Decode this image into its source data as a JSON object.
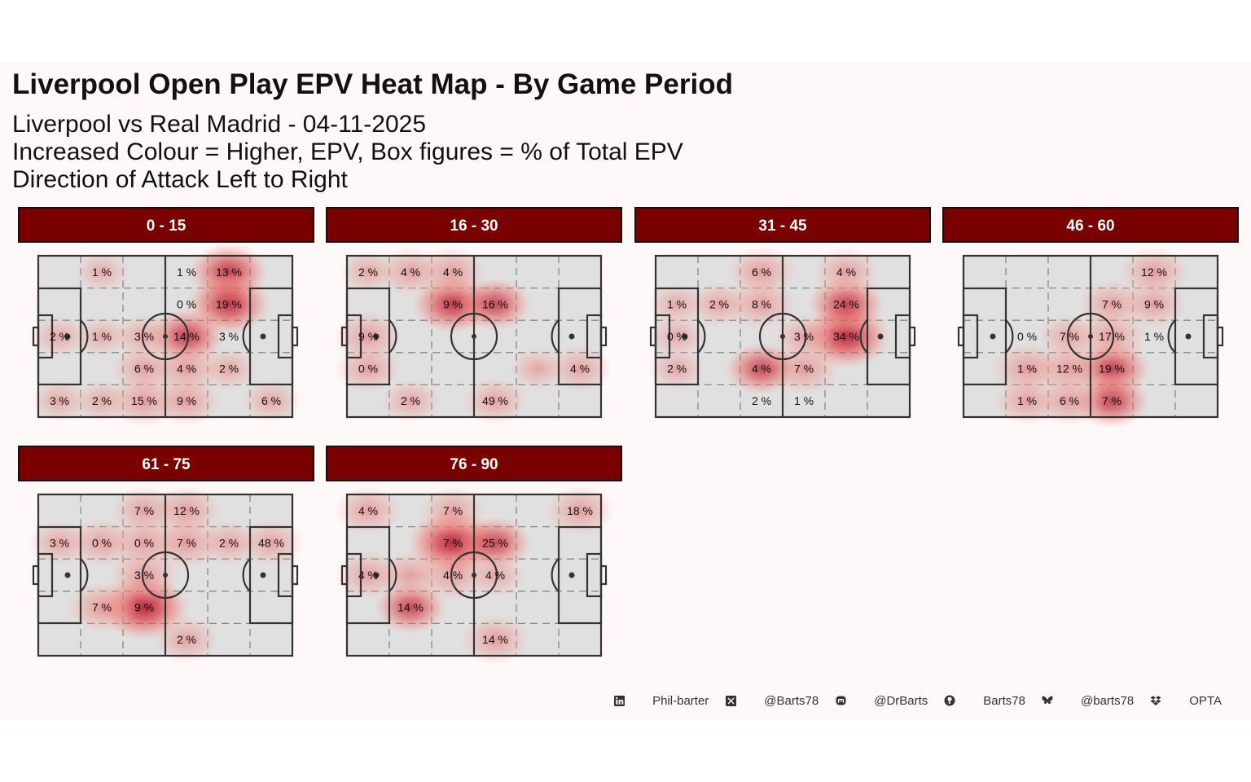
{
  "header": {
    "title": "Liverpool Open Play EPV Heat Map - By Game Period",
    "subtitle_lines": [
      "Liverpool vs Real Madrid - 04-11-2025",
      "Increased Colour = Higher, EPV, Box figures = % of Total EPV",
      "Direction of Attack Left to Right"
    ]
  },
  "colors": {
    "panel_background": "#fff8f8",
    "pitch_fill": "#e0e0e0",
    "pitch_lines": "#333333",
    "grid_dash": "#7f8a86",
    "strip_fill": "#7a0000",
    "heat_low": "#f7b3aa",
    "heat_high": "#b0102a"
  },
  "chart_data": {
    "type": "heatmap",
    "grid_rows": 5,
    "grid_cols": 6,
    "note_cells": "Each label is placed at [row, col] of the 5x6 box grid; row 0 = top, col 0 = left (own goal).",
    "panels": [
      {
        "period": "0 - 15",
        "labels": [
          {
            "cell": [
              0,
              1
            ],
            "text": "1 %"
          },
          {
            "cell": [
              0,
              3
            ],
            "text": "1 %"
          },
          {
            "cell": [
              0,
              4
            ],
            "text": "13 %"
          },
          {
            "cell": [
              1,
              3
            ],
            "text": "0 %"
          },
          {
            "cell": [
              1,
              4
            ],
            "text": "19 %"
          },
          {
            "cell": [
              2,
              0
            ],
            "text": "2 %"
          },
          {
            "cell": [
              2,
              1
            ],
            "text": "1 %"
          },
          {
            "cell": [
              2,
              2
            ],
            "text": "3 %"
          },
          {
            "cell": [
              2,
              3
            ],
            "text": "14 %"
          },
          {
            "cell": [
              2,
              4
            ],
            "text": "3 %"
          },
          {
            "cell": [
              3,
              2
            ],
            "text": "6 %"
          },
          {
            "cell": [
              3,
              3
            ],
            "text": "4 %"
          },
          {
            "cell": [
              3,
              4
            ],
            "text": "2 %"
          },
          {
            "cell": [
              4,
              0
            ],
            "text": "3 %"
          },
          {
            "cell": [
              4,
              1
            ],
            "text": "2 %"
          },
          {
            "cell": [
              4,
              2
            ],
            "text": "15 %"
          },
          {
            "cell": [
              4,
              3
            ],
            "text": "9 %"
          },
          {
            "cell": [
              4,
              5
            ],
            "text": "6 %"
          }
        ],
        "blobs": [
          {
            "cell": [
              0,
              4
            ],
            "level": 0.7
          },
          {
            "cell": [
              1,
              4
            ],
            "level": 0.8
          },
          {
            "cell": [
              2,
              3
            ],
            "level": 0.65
          },
          {
            "cell": [
              3,
              3
            ],
            "level": 0.45
          },
          {
            "cell": [
              3,
              2
            ],
            "level": 0.4
          },
          {
            "cell": [
              4,
              2
            ],
            "level": 0.5
          },
          {
            "cell": [
              4,
              3
            ],
            "level": 0.45
          },
          {
            "cell": [
              2,
              0
            ],
            "level": 0.2
          },
          {
            "cell": [
              4,
              0
            ],
            "level": 0.2
          },
          {
            "cell": [
              4,
              5
            ],
            "level": 0.25
          },
          {
            "cell": [
              3,
              4
            ],
            "level": 0.2
          },
          {
            "cell": [
              0,
              1
            ],
            "level": 0.15
          },
          {
            "cell": [
              2,
              1
            ],
            "level": 0.15
          },
          {
            "cell": [
              2,
              2
            ],
            "level": 0.3
          },
          {
            "cell": [
              4,
              1
            ],
            "level": 0.2
          }
        ]
      },
      {
        "period": "16 - 30",
        "labels": [
          {
            "cell": [
              0,
              0
            ],
            "text": "2 %"
          },
          {
            "cell": [
              0,
              1
            ],
            "text": "4 %"
          },
          {
            "cell": [
              0,
              2
            ],
            "text": "4 %"
          },
          {
            "cell": [
              1,
              2
            ],
            "text": "9 %"
          },
          {
            "cell": [
              1,
              3
            ],
            "text": "16 %"
          },
          {
            "cell": [
              2,
              0
            ],
            "text": "9 %"
          },
          {
            "cell": [
              3,
              0
            ],
            "text": "0 %"
          },
          {
            "cell": [
              3,
              5
            ],
            "text": "4 %"
          },
          {
            "cell": [
              4,
              1
            ],
            "text": "2 %"
          },
          {
            "cell": [
              4,
              3
            ],
            "text": "49 %"
          }
        ],
        "blobs": [
          {
            "cell": [
              1,
              2
            ],
            "level": 0.75
          },
          {
            "cell": [
              1,
              3
            ],
            "level": 0.55
          },
          {
            "cell": [
              0,
              1
            ],
            "level": 0.4
          },
          {
            "cell": [
              0,
              2
            ],
            "level": 0.45
          },
          {
            "cell": [
              0,
              0
            ],
            "level": 0.2
          },
          {
            "cell": [
              2,
              0
            ],
            "level": 0.45
          },
          {
            "cell": [
              3,
              0
            ],
            "level": 0.4
          },
          {
            "cell": [
              4,
              1
            ],
            "level": 0.25
          },
          {
            "cell": [
              4,
              3
            ],
            "level": 0.35
          },
          {
            "cell": [
              3,
              5
            ],
            "level": 0.35
          },
          {
            "cell": [
              3,
              4
            ],
            "level": 0.2
          }
        ]
      },
      {
        "period": "31 - 45",
        "labels": [
          {
            "cell": [
              0,
              2
            ],
            "text": "6 %"
          },
          {
            "cell": [
              0,
              4
            ],
            "text": "4 %"
          },
          {
            "cell": [
              1,
              0
            ],
            "text": "1 %"
          },
          {
            "cell": [
              1,
              1
            ],
            "text": "2 %"
          },
          {
            "cell": [
              1,
              2
            ],
            "text": "8 %"
          },
          {
            "cell": [
              1,
              4
            ],
            "text": "24 %"
          },
          {
            "cell": [
              2,
              0
            ],
            "text": "0 %"
          },
          {
            "cell": [
              2,
              3
            ],
            "text": "3 %"
          },
          {
            "cell": [
              2,
              4
            ],
            "text": "34 %"
          },
          {
            "cell": [
              3,
              0
            ],
            "text": "2 %"
          },
          {
            "cell": [
              3,
              2
            ],
            "text": "4 %"
          },
          {
            "cell": [
              3,
              3
            ],
            "text": "7 %"
          },
          {
            "cell": [
              4,
              2
            ],
            "text": "2 %"
          },
          {
            "cell": [
              4,
              3
            ],
            "text": "1 %"
          }
        ],
        "blobs": [
          {
            "cell": [
              2,
              4
            ],
            "level": 0.9
          },
          {
            "cell": [
              1,
              4
            ],
            "level": 0.65
          },
          {
            "cell": [
              0,
              4
            ],
            "level": 0.4
          },
          {
            "cell": [
              3,
              3
            ],
            "level": 0.5
          },
          {
            "cell": [
              3,
              2
            ],
            "level": 0.55
          },
          {
            "cell": [
              1,
              2
            ],
            "level": 0.45
          },
          {
            "cell": [
              0,
              2
            ],
            "level": 0.45
          },
          {
            "cell": [
              1,
              1
            ],
            "level": 0.3
          },
          {
            "cell": [
              1,
              0
            ],
            "level": 0.2
          },
          {
            "cell": [
              2,
              0
            ],
            "level": 0.2
          },
          {
            "cell": [
              3,
              0
            ],
            "level": 0.2
          },
          {
            "cell": [
              2,
              3
            ],
            "level": 0.3
          }
        ]
      },
      {
        "period": "46 - 60",
        "labels": [
          {
            "cell": [
              0,
              4
            ],
            "text": "12 %"
          },
          {
            "cell": [
              1,
              3
            ],
            "text": "7 %"
          },
          {
            "cell": [
              1,
              4
            ],
            "text": "9 %"
          },
          {
            "cell": [
              2,
              1
            ],
            "text": "0 %"
          },
          {
            "cell": [
              2,
              2
            ],
            "text": "7 %"
          },
          {
            "cell": [
              2,
              3
            ],
            "text": "17 %"
          },
          {
            "cell": [
              2,
              4
            ],
            "text": "1 %"
          },
          {
            "cell": [
              3,
              1
            ],
            "text": "1 %"
          },
          {
            "cell": [
              3,
              2
            ],
            "text": "12 %"
          },
          {
            "cell": [
              3,
              3
            ],
            "text": "19 %"
          },
          {
            "cell": [
              4,
              1
            ],
            "text": "1 %"
          },
          {
            "cell": [
              4,
              2
            ],
            "text": "6 %"
          },
          {
            "cell": [
              4,
              3
            ],
            "text": "7 %"
          }
        ],
        "blobs": [
          {
            "cell": [
              3,
              3
            ],
            "level": 0.65
          },
          {
            "cell": [
              4,
              3
            ],
            "level": 0.6
          },
          {
            "cell": [
              3,
              2
            ],
            "level": 0.5
          },
          {
            "cell": [
              3,
              1
            ],
            "level": 0.5
          },
          {
            "cell": [
              4,
              1
            ],
            "level": 0.4
          },
          {
            "cell": [
              4,
              2
            ],
            "level": 0.45
          },
          {
            "cell": [
              2,
              3
            ],
            "level": 0.45
          },
          {
            "cell": [
              1,
              3
            ],
            "level": 0.4
          },
          {
            "cell": [
              1,
              4
            ],
            "level": 0.4
          },
          {
            "cell": [
              0,
              4
            ],
            "level": 0.45
          },
          {
            "cell": [
              2,
              2
            ],
            "level": 0.3
          }
        ]
      },
      {
        "period": "61 - 75",
        "labels": [
          {
            "cell": [
              0,
              2
            ],
            "text": "7 %"
          },
          {
            "cell": [
              0,
              3
            ],
            "text": "12 %"
          },
          {
            "cell": [
              1,
              0
            ],
            "text": "3 %"
          },
          {
            "cell": [
              1,
              1
            ],
            "text": "0 %"
          },
          {
            "cell": [
              1,
              2
            ],
            "text": "0 %"
          },
          {
            "cell": [
              1,
              3
            ],
            "text": "7 %"
          },
          {
            "cell": [
              1,
              4
            ],
            "text": "2 %"
          },
          {
            "cell": [
              1,
              5
            ],
            "text": "48 %"
          },
          {
            "cell": [
              2,
              2
            ],
            "text": "3 %"
          },
          {
            "cell": [
              3,
              1
            ],
            "text": "7 %"
          },
          {
            "cell": [
              3,
              2
            ],
            "text": "9 %"
          },
          {
            "cell": [
              4,
              3
            ],
            "text": "2 %"
          }
        ],
        "blobs": [
          {
            "cell": [
              3,
              2
            ],
            "level": 0.95
          },
          {
            "cell": [
              3,
              1
            ],
            "level": 0.5
          },
          {
            "cell": [
              2,
              2
            ],
            "level": 0.5
          },
          {
            "cell": [
              1,
              2
            ],
            "level": 0.45
          },
          {
            "cell": [
              0,
              2
            ],
            "level": 0.4
          },
          {
            "cell": [
              1,
              3
            ],
            "level": 0.5
          },
          {
            "cell": [
              0,
              3
            ],
            "level": 0.45
          },
          {
            "cell": [
              1,
              1
            ],
            "level": 0.4
          },
          {
            "cell": [
              1,
              0
            ],
            "level": 0.3
          },
          {
            "cell": [
              1,
              5
            ],
            "level": 0.35
          },
          {
            "cell": [
              4,
              3
            ],
            "level": 0.35
          },
          {
            "cell": [
              1,
              4
            ],
            "level": 0.3
          }
        ]
      },
      {
        "period": "76 - 90",
        "labels": [
          {
            "cell": [
              0,
              0
            ],
            "text": "4 %"
          },
          {
            "cell": [
              0,
              2
            ],
            "text": "7 %"
          },
          {
            "cell": [
              0,
              5
            ],
            "text": "18 %"
          },
          {
            "cell": [
              1,
              2
            ],
            "text": "7 %"
          },
          {
            "cell": [
              1,
              3
            ],
            "text": "25 %"
          },
          {
            "cell": [
              2,
              0
            ],
            "text": "4 %"
          },
          {
            "cell": [
              2,
              2
            ],
            "text": "4 %"
          },
          {
            "cell": [
              2,
              3
            ],
            "text": "4 %"
          },
          {
            "cell": [
              3,
              1
            ],
            "text": "14 %"
          },
          {
            "cell": [
              4,
              3
            ],
            "text": "14 %"
          }
        ],
        "blobs": [
          {
            "cell": [
              1,
              2
            ],
            "level": 0.95
          },
          {
            "cell": [
              1,
              3
            ],
            "level": 0.55
          },
          {
            "cell": [
              0,
              2
            ],
            "level": 0.4
          },
          {
            "cell": [
              2,
              2
            ],
            "level": 0.45
          },
          {
            "cell": [
              3,
              1
            ],
            "level": 0.55
          },
          {
            "cell": [
              2,
              1
            ],
            "level": 0.4
          },
          {
            "cell": [
              0,
              0
            ],
            "level": 0.4
          },
          {
            "cell": [
              2,
              0
            ],
            "level": 0.4
          },
          {
            "cell": [
              0,
              5
            ],
            "level": 0.45
          },
          {
            "cell": [
              4,
              3
            ],
            "level": 0.45
          },
          {
            "cell": [
              2,
              3
            ],
            "level": 0.25
          }
        ]
      }
    ]
  },
  "footer": {
    "items": [
      {
        "icon": "linkedin-icon",
        "text": "Phil-barter"
      },
      {
        "icon": "x-icon",
        "text": "@Barts78"
      },
      {
        "icon": "mastodon-icon",
        "text": "@DrBarts"
      },
      {
        "icon": "github-icon",
        "text": "Barts78"
      },
      {
        "icon": "bluesky-icon",
        "text": "@barts78"
      },
      {
        "icon": "dropbox-icon",
        "text": "OPTA"
      }
    ]
  }
}
